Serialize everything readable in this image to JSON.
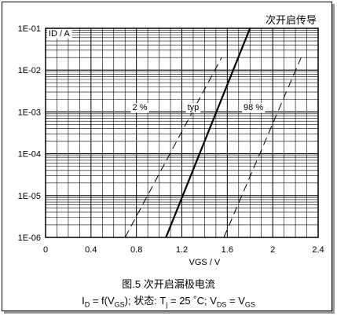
{
  "chart_data": {
    "type": "line",
    "title": "次开启传导",
    "ylabel": "ID / A",
    "xlabel": "VGS / V",
    "x_ticks": [
      "0",
      "0.4",
      "0.8",
      "1.2",
      "1.6",
      "2",
      "2.4"
    ],
    "y_ticks": [
      "1E-01",
      "1E-02",
      "1E-03",
      "1E-04",
      "1E-05",
      "1E-06"
    ],
    "xlim": [
      0,
      2.4
    ],
    "ylim": [
      1e-06,
      0.1
    ],
    "y_scale": "log",
    "grid": true,
    "series": [
      {
        "name": "2 %",
        "style": "dashed",
        "x": [
          0.7,
          1.55
        ],
        "y": [
          1e-06,
          0.02
        ]
      },
      {
        "name": "typ",
        "style": "solid",
        "x": [
          1.06,
          1.8
        ],
        "y": [
          1e-06,
          0.1
        ]
      },
      {
        "name": "98 %",
        "style": "dashed",
        "x": [
          1.57,
          2.25
        ],
        "y": [
          1e-06,
          0.02
        ]
      }
    ]
  },
  "caption": {
    "line1": "图.5 次开启漏极电流",
    "line2_parts": [
      "I",
      "D",
      " = f(V",
      "GS",
      "); 状态: T",
      "j",
      " = 25 ˚C; V",
      "DS",
      " = V",
      "GS"
    ]
  }
}
